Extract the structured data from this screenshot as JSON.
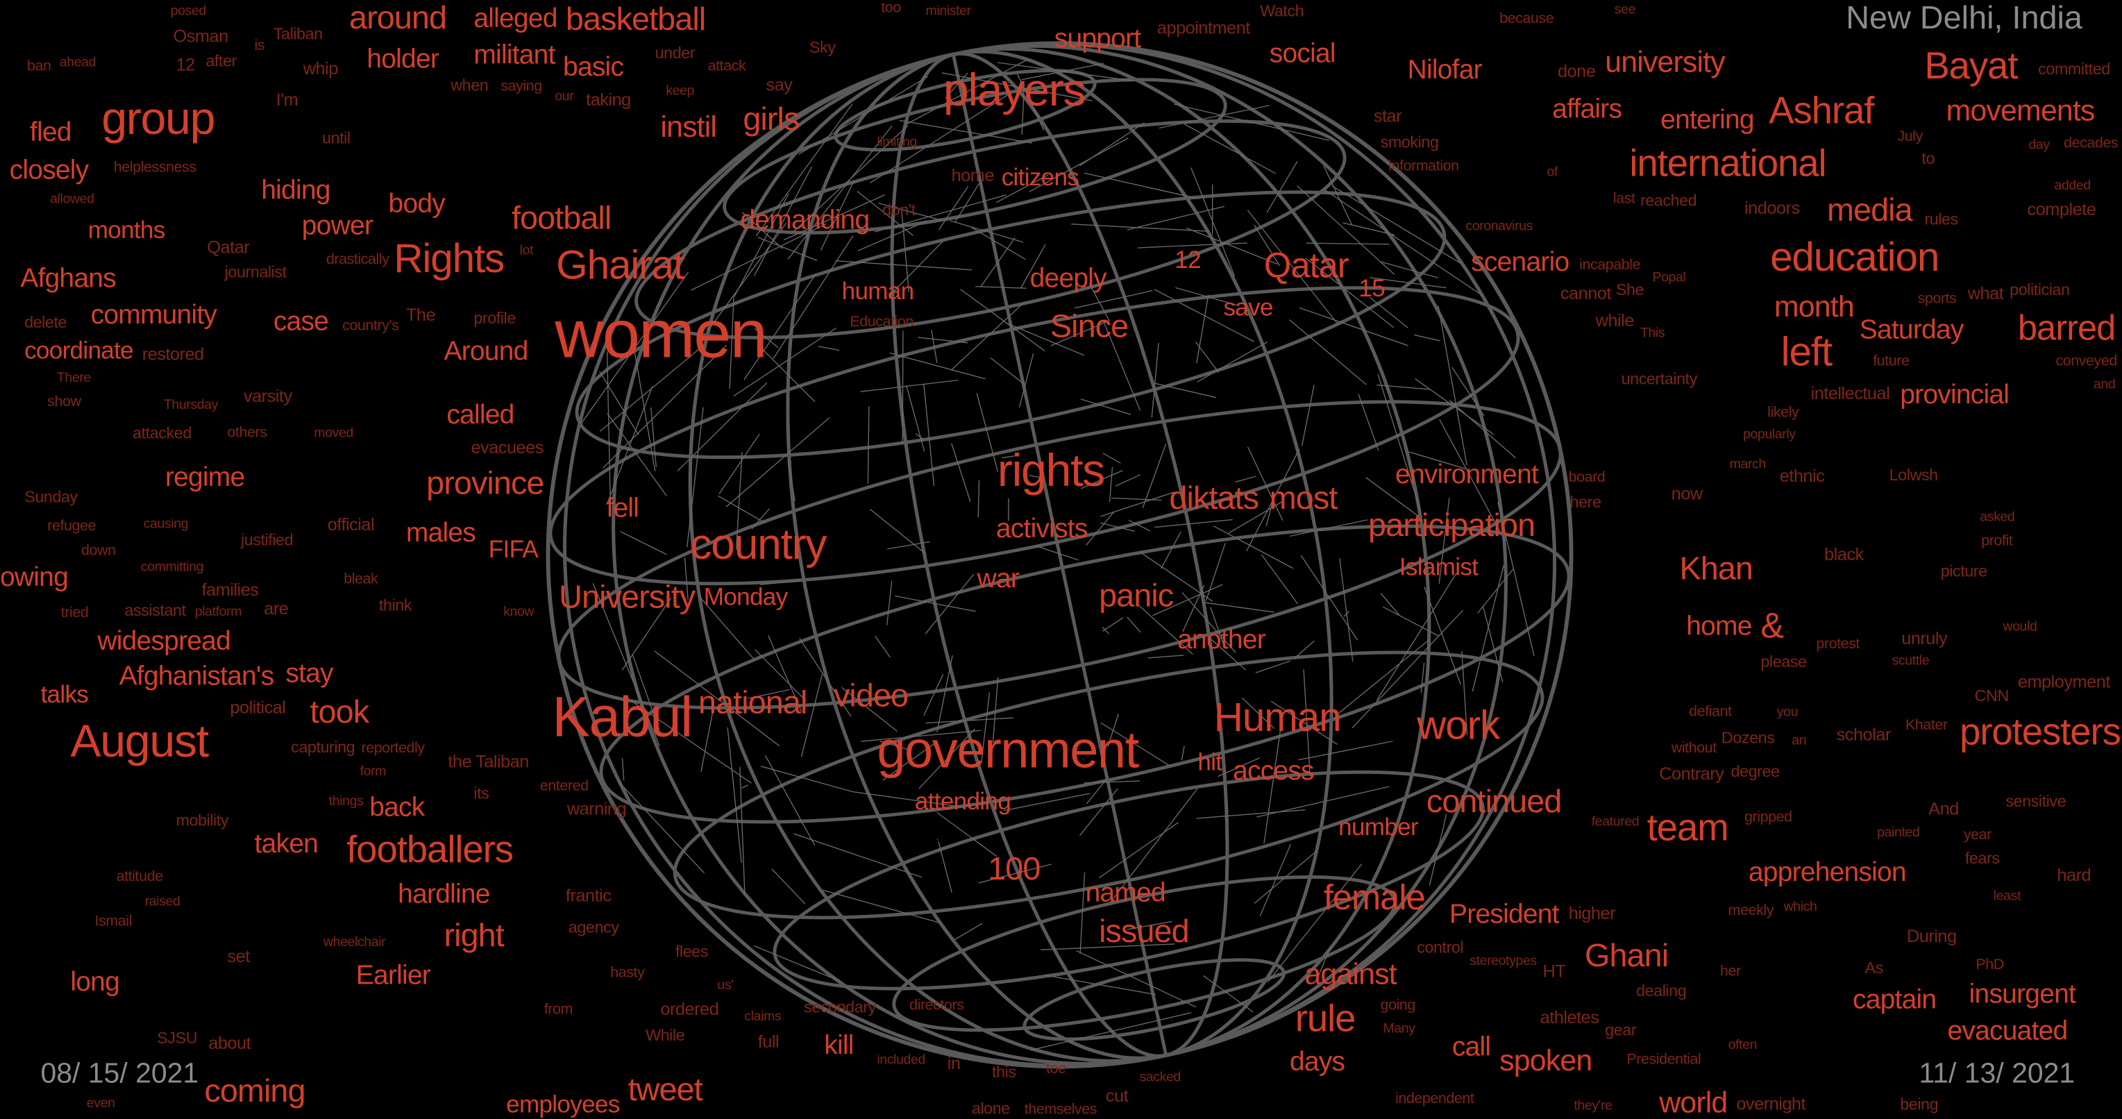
{
  "labels": {
    "location": "New Delhi, India",
    "start_date": "08/ 15/ 2021",
    "end_date": "11/ 13/ 2021"
  },
  "colors": {
    "background": "#000000",
    "word": "#d4402c",
    "word_dim": "#7d2619",
    "globe": "#5a5a5a",
    "label": "#8c8c8c"
  },
  "globe_icon": "wireframe-globe",
  "words": [
    "around",
    "holder",
    "alleged",
    "basketball",
    "militant",
    "basic",
    "group",
    "fled",
    "closely",
    "hiding",
    "months",
    "power",
    "body",
    "football",
    "Ghairat",
    "Rights",
    "women",
    "Afghans",
    "community",
    "coordinate",
    "case",
    "Around",
    "called",
    "regime",
    "province",
    "males",
    "FIFA",
    "owing",
    "widespread",
    "Afghanistan's",
    "stay",
    "took",
    "talks",
    "August",
    "Kabul",
    "national",
    "video",
    "government",
    "Human",
    "work",
    "University",
    "Monday",
    "country",
    "fell",
    "rights",
    "activists",
    "diktats",
    "most",
    "war",
    "panic",
    "another",
    "environment",
    "participation",
    "Islamist",
    "players",
    "support",
    "girls",
    "instil",
    "citizens",
    "demanding",
    "deeply",
    "human",
    "Since",
    "Qatar",
    "12",
    "15",
    "save",
    "scenario",
    "social",
    "Nilofar",
    "university",
    "affairs",
    "entering",
    "international",
    "Ashraf",
    "Bayat",
    "movements",
    "media",
    "education",
    "month",
    "left",
    "Saturday",
    "barred",
    "provincial",
    "Khan",
    "home",
    "&",
    "protesters",
    "team",
    "apprehension",
    "President",
    "Ghani",
    "captain",
    "evacuated",
    "insurgent",
    "continued",
    "number",
    "female",
    "against",
    "rule",
    "days",
    "call",
    "spoken",
    "access",
    "hit",
    "attending",
    "100",
    "named",
    "issued",
    "tweet",
    "employees",
    "kill",
    "footballers",
    "back",
    "taken",
    "hardline",
    "right",
    "Earlier",
    "long",
    "coming",
    "world",
    "Osman",
    "after",
    "is",
    "ahead",
    "whip",
    "when",
    "saying",
    "our",
    "taking",
    "under",
    "attack",
    "keep",
    "say",
    "Sky",
    "too",
    "minister",
    "appointment",
    "Watch",
    "because",
    "see",
    "done",
    "committed",
    "decades",
    "day",
    "I'm",
    "until",
    "helplessness",
    "allowed",
    "Qatar",
    "journalist",
    "drastically",
    "lot",
    "The",
    "profile",
    "country's",
    "There",
    "restored",
    "delete",
    "show",
    "Thursday",
    "varsity",
    "attacked",
    "others",
    "moved",
    "evacuees",
    "Sunday",
    "refugee",
    "causing",
    "official",
    "justified",
    "down",
    "committing",
    "families",
    "assistant",
    "tried",
    "platform",
    "are",
    "think",
    "bleak",
    "know",
    "political",
    "capturing",
    "reportedly",
    "form",
    "the Taliban",
    "its",
    "entered",
    "things",
    "warning",
    "mobility",
    "attitude",
    "raised",
    "frantic",
    "agency",
    "Ismail",
    "wheelchair",
    "set",
    "flees",
    "hasty",
    "us'",
    "ordered",
    "While",
    "from",
    "claims",
    "full",
    "secondary",
    "directors",
    "included",
    "in",
    "this",
    "toe",
    "sacked",
    "cut",
    "alone",
    "themselves",
    "even",
    "about",
    "SJSU",
    "independent",
    "they're",
    "overnight",
    "being",
    "Presidential",
    "often",
    "athletes",
    "gear",
    "going",
    "Many",
    "HT",
    "dealing",
    "her",
    "stereotypes",
    "higher",
    "control",
    "meekly",
    "which",
    "During",
    "As",
    "PhD",
    "least",
    "hard",
    "fears",
    "year",
    "painted",
    "And",
    "sensitive",
    "gripped",
    "featured",
    "Contrary",
    "degree",
    "without",
    "an",
    "scholar",
    "Dozens",
    "defiant",
    "you",
    "employment",
    "CNN",
    "Khater",
    "scuttle",
    "unruly",
    "please",
    "protest",
    "would",
    "black",
    "picture",
    "profit",
    "asked",
    "now",
    "here",
    "board",
    "march",
    "ethnic",
    "Lolwsh",
    "likely",
    "popularly",
    "intellectual",
    "uncertainty",
    "conveyed",
    "and",
    "what",
    "politician",
    "sports",
    "This",
    "while",
    "She",
    "incapable",
    "Popal",
    "cannot",
    "reached",
    "last",
    "of",
    "indoors",
    "to",
    "July",
    "added",
    "complete",
    "rules",
    "future",
    "coronavirus",
    "star",
    "smoking",
    "information",
    "limiting",
    "home",
    "don't",
    "Education",
    "posed",
    "12",
    "Taliban",
    "ban"
  ]
}
